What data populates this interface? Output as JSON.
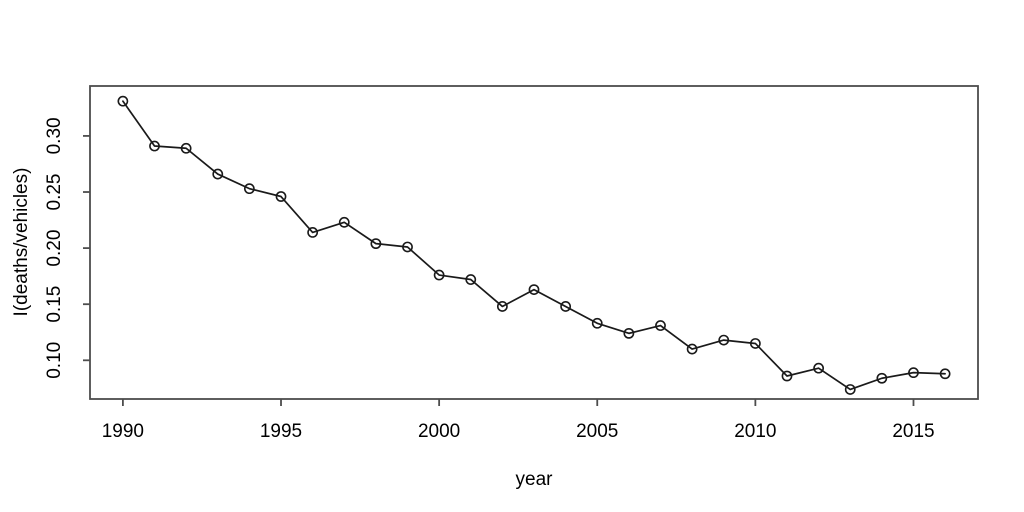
{
  "chart_data": {
    "type": "line",
    "title": "",
    "xlabel": "year",
    "ylabel": "I(deaths/vehicles)",
    "x": [
      1990,
      1991,
      1992,
      1993,
      1994,
      1995,
      1996,
      1997,
      1998,
      1999,
      2000,
      2001,
      2002,
      2003,
      2004,
      2005,
      2006,
      2007,
      2008,
      2009,
      2010,
      2011,
      2012,
      2013,
      2014,
      2015,
      2016
    ],
    "values": [
      0.331,
      0.291,
      0.289,
      0.266,
      0.253,
      0.246,
      0.214,
      0.223,
      0.204,
      0.201,
      0.176,
      0.172,
      0.148,
      0.163,
      0.148,
      0.133,
      0.124,
      0.131,
      0.11,
      0.118,
      0.115,
      0.086,
      0.093,
      0.074,
      0.084,
      0.089,
      0.088
    ],
    "x_tick_labels": [
      "1990",
      "1995",
      "2000",
      "2005",
      "2010",
      "2015"
    ],
    "y_tick_labels": [
      "0.10",
      "0.15",
      "0.20",
      "0.25",
      "0.30"
    ],
    "xlim": [
      1988.96,
      2017.04
    ],
    "ylim": [
      0.0655,
      0.3445
    ],
    "grid": false,
    "legend": null,
    "marker": "open-circle",
    "colors": {
      "background": "#ffffff",
      "axis": "#4d4d4d",
      "line": "#1a1a1a",
      "text": "#000000"
    }
  }
}
